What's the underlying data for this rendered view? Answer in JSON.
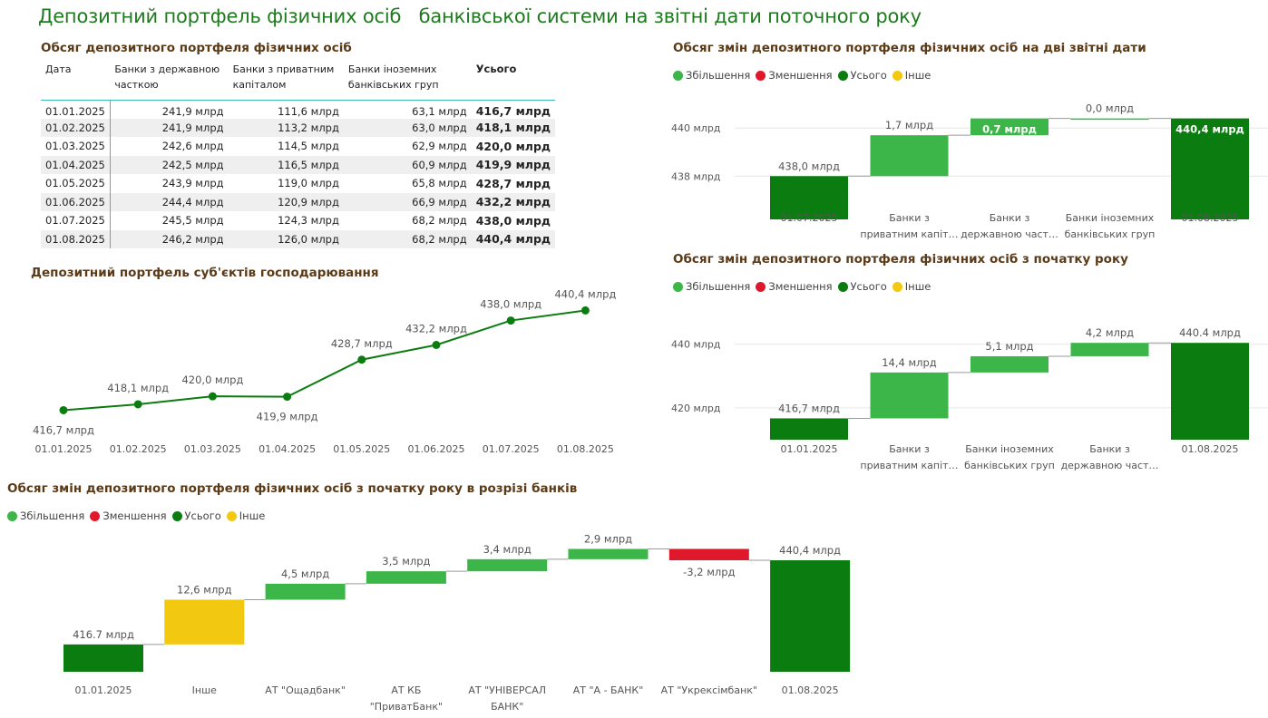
{
  "page_title": "Депозитний портфель фізичних осіб   банківської системи на звітні дати поточного року",
  "legend": [
    {
      "label": "Збільшення",
      "color": "#3cb648"
    },
    {
      "label": "Зменшення",
      "color": "#e0182b"
    },
    {
      "label": "Усього",
      "color": "#0b7d10"
    },
    {
      "label": "Інше",
      "color": "#f2c811"
    }
  ],
  "table": {
    "title": "Обсяг депозитного портфеля фізичних осіб",
    "headers": [
      "Дата",
      "Банки з державною часткою",
      "Банки з приватним капіталом",
      "Банки іноземних банківських груп",
      "Усього"
    ],
    "rows": [
      [
        "01.01.2025",
        "241,9 млрд",
        "111,6 млрд",
        "63,1 млрд",
        "416,7 млрд"
      ],
      [
        "01.02.2025",
        "241,9 млрд",
        "113,2 млрд",
        "63,0 млрд",
        "418,1 млрд"
      ],
      [
        "01.03.2025",
        "242,6 млрд",
        "114,5 млрд",
        "62,9 млрд",
        "420,0 млрд"
      ],
      [
        "01.04.2025",
        "242,5 млрд",
        "116,5 млрд",
        "60,9 млрд",
        "419,9 млрд"
      ],
      [
        "01.05.2025",
        "243,9 млрд",
        "119,0 млрд",
        "65,8 млрд",
        "428,7 млрд"
      ],
      [
        "01.06.2025",
        "244,4 млрд",
        "120,9 млрд",
        "66,9 млрд",
        "432,2 млрд"
      ],
      [
        "01.07.2025",
        "245,5 млрд",
        "124,3 млрд",
        "68,2 млрд",
        "438,0 млрд"
      ],
      [
        "01.08.2025",
        "246,2 млрд",
        "126,0 млрд",
        "68,2 млрд",
        "440,4 млрд"
      ]
    ]
  },
  "chart_data": [
    {
      "id": "line",
      "type": "line",
      "title": "Депозитний портфель суб'єктів господарювання",
      "categories": [
        "01.01.2025",
        "01.02.2025",
        "01.03.2025",
        "01.04.2025",
        "01.05.2025",
        "01.06.2025",
        "01.07.2025",
        "01.08.2025"
      ],
      "values": [
        416.7,
        418.1,
        420.0,
        419.9,
        428.7,
        432.2,
        438.0,
        440.4
      ],
      "labels": [
        "416,7 млрд",
        "418,1 млрд",
        "420,0 млрд",
        "419,9 млрд",
        "428,7 млрд",
        "432,2 млрд",
        "438,0 млрд",
        "440,4 млрд"
      ],
      "label_pos": [
        "below",
        "above",
        "above",
        "below",
        "above",
        "above",
        "above",
        "above"
      ],
      "ylim": [
        414,
        442
      ],
      "color": "#0b7d10"
    },
    {
      "id": "wf1",
      "type": "waterfall",
      "title": "Обсяг змін депозитного портфеля фізичних осіб на дві звітні дати",
      "ylim": [
        436.2,
        440.8
      ],
      "yticks": [
        {
          "v": 438,
          "label": "438 млрд"
        },
        {
          "v": 440,
          "label": "440 млрд"
        }
      ],
      "bars": [
        {
          "cat": [
            "01.07.2025"
          ],
          "kind": "total",
          "start": 0,
          "end": 438.0,
          "label": "438,0 млрд",
          "label_pos": "above"
        },
        {
          "cat": [
            "Банки з",
            "приватним капіт…"
          ],
          "kind": "inc",
          "start": 438.0,
          "end": 439.7,
          "label": "1,7 млрд",
          "label_pos": "above"
        },
        {
          "cat": [
            "Банки з",
            "державною част…"
          ],
          "kind": "inc",
          "start": 439.7,
          "end": 440.4,
          "label": "0,7 млрд",
          "label_pos": "inside"
        },
        {
          "cat": [
            "Банки іноземних",
            "банківських груп"
          ],
          "kind": "inc",
          "start": 440.4,
          "end": 440.4,
          "label": "0,0 млрд",
          "label_pos": "above"
        },
        {
          "cat": [
            "01.08.2025"
          ],
          "kind": "total",
          "start": 0,
          "end": 440.4,
          "label": "440,4 млрд",
          "label_pos": "inside"
        }
      ]
    },
    {
      "id": "wf2",
      "type": "waterfall",
      "title": "Обсяг змін депозитного портфеля фізичних осіб  з початку року",
      "ylim": [
        410,
        447
      ],
      "yticks": [
        {
          "v": 420,
          "label": "420 млрд"
        },
        {
          "v": 440,
          "label": "440 млрд"
        }
      ],
      "bars": [
        {
          "cat": [
            "01.01.2025"
          ],
          "kind": "total",
          "start": 0,
          "end": 416.7,
          "label": "416,7 млрд",
          "label_pos": "above"
        },
        {
          "cat": [
            "Банки з",
            "приватним капіт…"
          ],
          "kind": "inc",
          "start": 416.7,
          "end": 431.1,
          "label": "14,4 млрд",
          "label_pos": "above"
        },
        {
          "cat": [
            "Банки іноземних",
            "банківських груп"
          ],
          "kind": "inc",
          "start": 431.1,
          "end": 436.2,
          "label": "5,1 млрд",
          "label_pos": "above"
        },
        {
          "cat": [
            "Банки з",
            "державною част…"
          ],
          "kind": "inc",
          "start": 436.2,
          "end": 440.4,
          "label": "4,2 млрд",
          "label_pos": "above"
        },
        {
          "cat": [
            "01.08.2025"
          ],
          "kind": "total",
          "start": 0,
          "end": 440.4,
          "label": "440.4 млрд",
          "label_pos": "above"
        }
      ]
    },
    {
      "id": "wf3",
      "type": "waterfall",
      "title": "Обсяг змін депозитного портфеля фізичних осіб  з початку року в розрізі банків",
      "ylim": [
        409,
        445
      ],
      "yticks": [],
      "bars": [
        {
          "cat": [
            "01.01.2025"
          ],
          "kind": "total",
          "start": 0,
          "end": 416.7,
          "label": "416.7 млрд",
          "label_pos": "above"
        },
        {
          "cat": [
            "Інше"
          ],
          "kind": "other",
          "start": 416.7,
          "end": 429.3,
          "label": "12,6 млрд",
          "label_pos": "above"
        },
        {
          "cat": [
            "АТ \"Ощадбанк\""
          ],
          "kind": "inc",
          "start": 429.3,
          "end": 433.8,
          "label": "4,5 млрд",
          "label_pos": "above"
        },
        {
          "cat": [
            "АТ КБ",
            "\"ПриватБанк\""
          ],
          "kind": "inc",
          "start": 433.8,
          "end": 437.3,
          "label": "3,5 млрд",
          "label_pos": "above"
        },
        {
          "cat": [
            "АТ \"УНІВЕРСАЛ",
            "БАНК\""
          ],
          "kind": "inc",
          "start": 437.3,
          "end": 440.7,
          "label": "3,4 млрд",
          "label_pos": "above"
        },
        {
          "cat": [
            "АТ \"А - БАНК\""
          ],
          "kind": "inc",
          "start": 440.7,
          "end": 443.6,
          "label": "2,9 млрд",
          "label_pos": "above"
        },
        {
          "cat": [
            "АТ \"Укрексімбанк\""
          ],
          "kind": "dec",
          "start": 443.6,
          "end": 440.4,
          "label": "-3,2 млрд",
          "label_pos": "below"
        },
        {
          "cat": [
            "01.08.2025"
          ],
          "kind": "total",
          "start": 0,
          "end": 440.4,
          "label": "440,4 млрд",
          "label_pos": "above"
        }
      ]
    }
  ]
}
